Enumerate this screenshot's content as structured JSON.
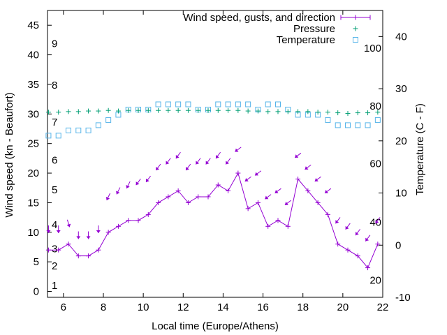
{
  "chart_data": {
    "type": "line",
    "xlabel": "Local time (Europe/Athens)",
    "ylabel": "Wind speed (kn - Beaufort)",
    "y2label": "Temperature (C - F)",
    "xlim": [
      5.2,
      22
    ],
    "ylim": [
      -1,
      47.5
    ],
    "y2lim": [
      -10,
      45
    ],
    "x_ticks": [
      "6",
      "8",
      "10",
      "12",
      "14",
      "16",
      "18",
      "20",
      "22"
    ],
    "y_ticks": [
      "0",
      "5",
      "10",
      "15",
      "20",
      "25",
      "30",
      "35",
      "40",
      "45"
    ],
    "y2_ticks": [
      "-10",
      "0",
      "10",
      "20",
      "30",
      "40"
    ],
    "beaufort_labels": [
      {
        "text": "1",
        "y": 1.0
      },
      {
        "text": "2",
        "y": 4.3
      },
      {
        "text": "3",
        "y": 7.2
      },
      {
        "text": "4",
        "y": 11.3
      },
      {
        "text": "5",
        "y": 17.2
      },
      {
        "text": "6",
        "y": 22.2
      },
      {
        "text": "7",
        "y": 28.6
      },
      {
        "text": "8",
        "y": 34.9
      },
      {
        "text": "9",
        "y": 41.9
      }
    ],
    "fahrenheit_labels": [
      {
        "text": "20",
        "t": -6.7
      },
      {
        "text": "40",
        "t": 4.4
      },
      {
        "text": "60",
        "t": 15.6
      },
      {
        "text": "80",
        "t": 26.7
      },
      {
        "text": "100",
        "t": 37.8
      }
    ],
    "legend": [
      {
        "label": "Wind speed, gusts, and direction",
        "color": "#9400d3",
        "marker": "plus-line"
      },
      {
        "label": "Pressure",
        "color": "#009e73",
        "marker": "plus"
      },
      {
        "label": "Temperature",
        "color": "#56b4e9",
        "marker": "square"
      }
    ],
    "series": [
      {
        "name": "Wind speed, gusts, and direction",
        "color": "#9400d3",
        "x": [
          5.25,
          5.75,
          6.25,
          6.75,
          7.25,
          7.75,
          8.25,
          8.75,
          9.25,
          9.75,
          10.25,
          10.75,
          11.25,
          11.75,
          12.25,
          12.75,
          13.25,
          13.75,
          14.25,
          14.75,
          15.25,
          15.75,
          16.25,
          16.75,
          17.25,
          17.75,
          18.25,
          18.75,
          19.25,
          19.75,
          20.25,
          20.75,
          21.25,
          21.75
        ],
        "y": [
          7,
          7,
          8,
          6,
          6,
          7,
          10,
          11,
          12,
          12,
          13,
          15,
          16,
          17,
          15,
          16,
          16,
          18,
          17,
          20,
          14,
          15,
          11,
          12,
          11,
          19,
          17,
          15,
          13,
          8,
          7,
          6,
          4,
          8
        ],
        "gusts": [
          11,
          11,
          12,
          10,
          10,
          11,
          16,
          17,
          18,
          19,
          19,
          21,
          22,
          23,
          21,
          22,
          22,
          23,
          22,
          24,
          19,
          20,
          16,
          17,
          15,
          23,
          21,
          19,
          17,
          12,
          11,
          10,
          9,
          12
        ]
      },
      {
        "name": "Pressure",
        "color": "#009e73",
        "x": [
          5.25,
          5.75,
          6.25,
          6.75,
          7.25,
          7.75,
          8.25,
          8.75,
          9.25,
          9.75,
          10.25,
          10.75,
          11.25,
          11.75,
          12.25,
          12.75,
          13.25,
          13.75,
          14.25,
          14.75,
          15.25,
          15.75,
          16.25,
          16.75,
          17.25,
          17.75,
          18.25,
          18.75,
          19.25,
          19.75,
          20.25,
          20.75,
          21.25,
          21.75
        ],
        "y": [
          30.3,
          30.3,
          30.4,
          30.4,
          30.5,
          30.5,
          30.6,
          30.5,
          30.6,
          30.6,
          30.6,
          30.6,
          30.6,
          30.6,
          30.6,
          30.6,
          30.6,
          30.6,
          30.6,
          30.6,
          30.5,
          30.5,
          30.4,
          30.4,
          30.4,
          30.4,
          30.4,
          30.3,
          30.3,
          30.2,
          30.1,
          30.2,
          30.2,
          30.3
        ]
      },
      {
        "name": "Temperature",
        "color": "#56b4e9",
        "x": [
          5.25,
          5.75,
          6.25,
          6.75,
          7.25,
          7.75,
          8.25,
          8.75,
          9.25,
          9.75,
          10.25,
          10.75,
          11.25,
          11.75,
          12.25,
          12.75,
          13.25,
          13.75,
          14.25,
          14.75,
          15.25,
          15.75,
          16.25,
          16.75,
          17.25,
          17.75,
          18.25,
          18.75,
          19.25,
          19.75,
          20.25,
          20.75,
          21.25,
          21.75
        ],
        "t": [
          21,
          21,
          22,
          22,
          22,
          23,
          24,
          25,
          26,
          26,
          26,
          27,
          27,
          27,
          27,
          26,
          26,
          27,
          27,
          27,
          27,
          26,
          27,
          27,
          26,
          25,
          25,
          25,
          24,
          23,
          23,
          23,
          23,
          24
        ]
      }
    ],
    "direction_arrows": {
      "note_units": "arrow tail x, arrow tail y (kn), direction vector dx/dy in unit steps",
      "points": [
        {
          "x": 5.25,
          "y": 10.5,
          "dx": 0.0,
          "dy": -1.0
        },
        {
          "x": 5.75,
          "y": 10.5,
          "dx": 0.0,
          "dy": -1.0
        },
        {
          "x": 6.25,
          "y": 11.5,
          "dx": 0.3,
          "dy": -1.0
        },
        {
          "x": 6.75,
          "y": 9.5,
          "dx": 0.0,
          "dy": -1.0
        },
        {
          "x": 7.25,
          "y": 9.5,
          "dx": 0.0,
          "dy": -1.0
        },
        {
          "x": 7.75,
          "y": 10.5,
          "dx": 0.0,
          "dy": -1.0
        },
        {
          "x": 8.25,
          "y": 16.0,
          "dx": -0.5,
          "dy": -1.0
        },
        {
          "x": 8.75,
          "y": 17.0,
          "dx": -0.5,
          "dy": -1.0
        },
        {
          "x": 9.25,
          "y": 18.0,
          "dx": -0.5,
          "dy": -1.0
        },
        {
          "x": 9.75,
          "y": 18.5,
          "dx": -0.6,
          "dy": -0.8
        },
        {
          "x": 10.25,
          "y": 19.0,
          "dx": -0.6,
          "dy": -0.8
        },
        {
          "x": 10.75,
          "y": 21.0,
          "dx": -0.6,
          "dy": -0.8
        },
        {
          "x": 11.25,
          "y": 22.0,
          "dx": -0.6,
          "dy": -0.8
        },
        {
          "x": 11.75,
          "y": 23.0,
          "dx": -0.6,
          "dy": -0.8
        },
        {
          "x": 12.25,
          "y": 21.0,
          "dx": -0.6,
          "dy": -0.8
        },
        {
          "x": 12.75,
          "y": 22.0,
          "dx": -0.6,
          "dy": -0.8
        },
        {
          "x": 13.25,
          "y": 22.0,
          "dx": -0.6,
          "dy": -0.8
        },
        {
          "x": 13.75,
          "y": 23.0,
          "dx": -0.6,
          "dy": -0.8
        },
        {
          "x": 14.25,
          "y": 22.0,
          "dx": -0.6,
          "dy": -0.8
        },
        {
          "x": 14.75,
          "y": 24.0,
          "dx": -0.8,
          "dy": -0.6
        },
        {
          "x": 15.25,
          "y": 19.0,
          "dx": -0.8,
          "dy": -0.6
        },
        {
          "x": 15.75,
          "y": 20.0,
          "dx": -0.8,
          "dy": -0.6
        },
        {
          "x": 16.25,
          "y": 16.0,
          "dx": -0.8,
          "dy": -0.6
        },
        {
          "x": 16.75,
          "y": 17.0,
          "dx": -0.8,
          "dy": -0.6
        },
        {
          "x": 17.25,
          "y": 15.0,
          "dx": -0.8,
          "dy": -0.6
        },
        {
          "x": 17.75,
          "y": 23.0,
          "dx": -0.8,
          "dy": -0.6
        },
        {
          "x": 18.25,
          "y": 21.0,
          "dx": -0.8,
          "dy": -0.6
        },
        {
          "x": 18.75,
          "y": 19.0,
          "dx": -0.8,
          "dy": -0.6
        },
        {
          "x": 19.25,
          "y": 17.0,
          "dx": -0.8,
          "dy": -0.6
        },
        {
          "x": 19.75,
          "y": 12.0,
          "dx": -0.6,
          "dy": -0.8
        },
        {
          "x": 20.25,
          "y": 11.0,
          "dx": -0.6,
          "dy": -0.8
        },
        {
          "x": 20.75,
          "y": 10.0,
          "dx": -0.6,
          "dy": -0.8
        },
        {
          "x": 21.25,
          "y": 9.0,
          "dx": -0.6,
          "dy": -0.8
        },
        {
          "x": 21.75,
          "y": 12.0,
          "dx": -0.6,
          "dy": -0.8
        }
      ]
    }
  }
}
